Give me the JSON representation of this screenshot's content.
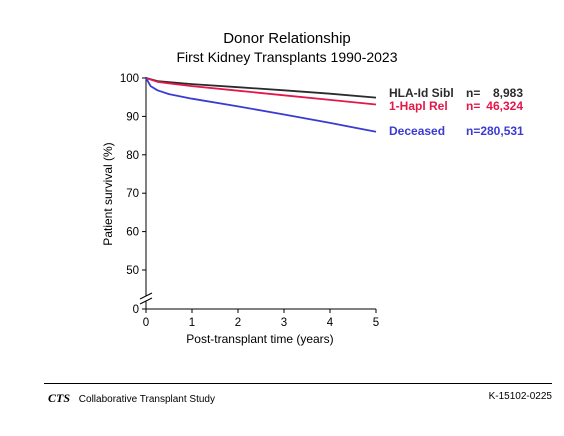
{
  "chart_data": {
    "type": "line",
    "title": "Donor Relationship",
    "subtitle": "First Kidney Transplants 1990-2023",
    "xlabel": "Post-transplant time (years)",
    "ylabel": "Patient survival (%)",
    "xlim": [
      0,
      5
    ],
    "ylim": [
      0,
      100
    ],
    "axis_break": true,
    "x_ticks": [
      0,
      1,
      2,
      3,
      4,
      5
    ],
    "y_ticks": [
      0,
      50,
      60,
      70,
      80,
      90,
      100
    ],
    "grid": false,
    "legend_position": "right",
    "series": [
      {
        "name": "HLA-Id Sibl",
        "n_label": "n=",
        "n_value": "8,983",
        "color": "#2b2b2b",
        "x": [
          0,
          0.25,
          0.5,
          1,
          2,
          3,
          4,
          5
        ],
        "y": [
          100,
          99.2,
          98.9,
          98.4,
          97.6,
          96.8,
          95.9,
          94.9
        ]
      },
      {
        "name": "1-Hapl Rel",
        "n_label": "n=",
        "n_value": "46,324",
        "color": "#e4174a",
        "x": [
          0,
          0.25,
          0.5,
          1,
          2,
          3,
          4,
          5
        ],
        "y": [
          100,
          99.0,
          98.6,
          97.9,
          96.7,
          95.5,
          94.3,
          93.1
        ]
      },
      {
        "name": "Deceased",
        "n_label": "n=280,531",
        "n_value": "",
        "color": "#3b3bd1",
        "x": [
          0,
          0.1,
          0.25,
          0.5,
          1,
          2,
          3,
          4,
          5
        ],
        "y": [
          100,
          97.9,
          96.8,
          95.8,
          94.6,
          92.6,
          90.5,
          88.3,
          86.0
        ]
      }
    ]
  },
  "footer": {
    "logo": "CTS",
    "org": "Collaborative Transplant Study",
    "code": "K-15102-0225"
  }
}
